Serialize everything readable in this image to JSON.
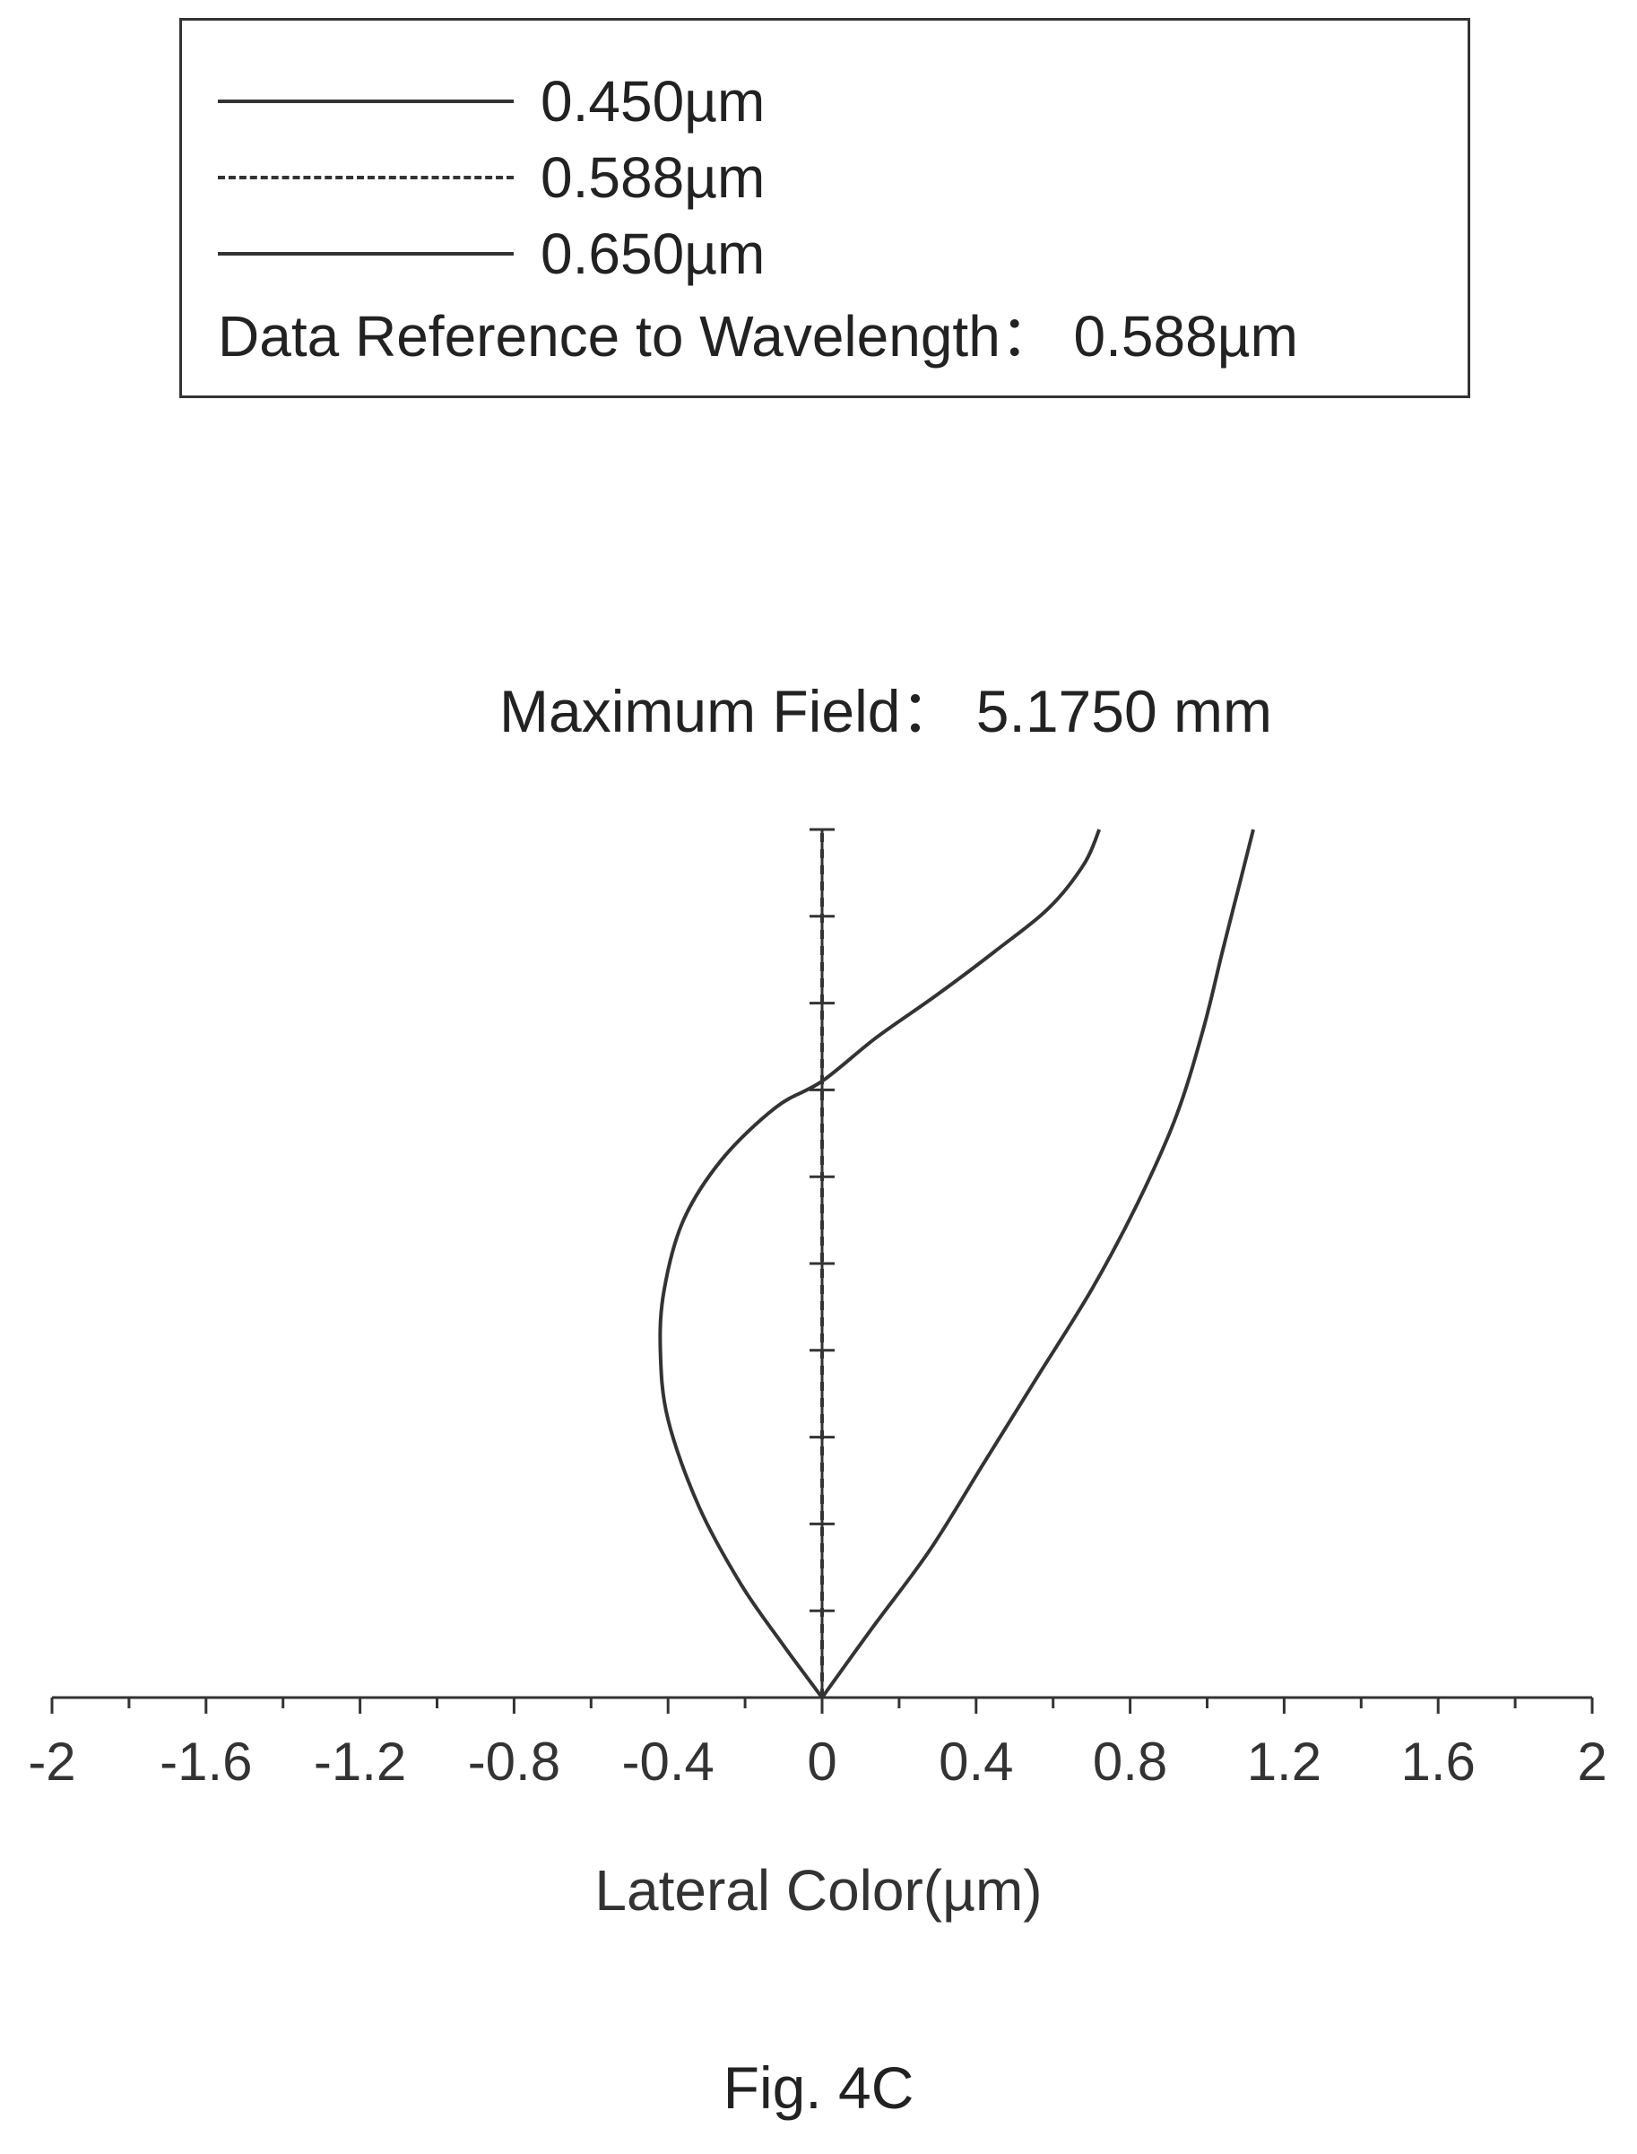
{
  "legend": {
    "items": [
      {
        "label": "0.450µm",
        "style": "solid"
      },
      {
        "label": "0.588µm",
        "style": "dashed"
      },
      {
        "label": "0.650µm",
        "style": "solid"
      }
    ],
    "reference": "Data Reference to Wavelength：  0.588µm"
  },
  "caption": "Fig. 4C",
  "chart_data": {
    "type": "line",
    "title": "Maximum Field：  5.1750 mm",
    "xlabel": "Lateral Color(µm)",
    "ylabel": "",
    "xlim": [
      -2,
      2
    ],
    "ylim": [
      0,
      1
    ],
    "x_ticks": [
      -2,
      -1.6,
      -1.2,
      -0.8,
      -0.4,
      0,
      0.4,
      0.8,
      1.2,
      1.6,
      2
    ],
    "x_tick_labels": [
      "-2",
      "-1.6",
      "-1.2",
      "-0.8",
      "-0.4",
      "0",
      "0.4",
      "0.8",
      "1.2",
      "1.6",
      "2"
    ],
    "x_minor_step": 0.2,
    "y_ticks": [
      0,
      0.1,
      0.2,
      0.3,
      0.4,
      0.5,
      0.6,
      0.7,
      0.8,
      0.9,
      1.0
    ],
    "grid": false,
    "series": [
      {
        "name": "0.450µm",
        "style": "solid",
        "color": "#333333",
        "x": [
          0,
          -0.1,
          -0.21,
          -0.32,
          -0.4,
          -0.42,
          -0.41,
          -0.36,
          -0.26,
          -0.12,
          0,
          0.14,
          0.3,
          0.45,
          0.59,
          0.68,
          0.72
        ],
        "y": [
          0,
          0.06,
          0.13,
          0.22,
          0.32,
          0.4,
          0.47,
          0.55,
          0.62,
          0.68,
          0.71,
          0.76,
          0.81,
          0.86,
          0.91,
          0.96,
          1.0
        ]
      },
      {
        "name": "0.588µm",
        "style": "dashed",
        "color": "#333333",
        "x": [
          0,
          0,
          0,
          0,
          0,
          0,
          0,
          0,
          0,
          0,
          0
        ],
        "y": [
          0,
          0.1,
          0.2,
          0.3,
          0.4,
          0.5,
          0.6,
          0.7,
          0.8,
          0.9,
          1.0
        ]
      },
      {
        "name": "0.650µm",
        "style": "solid",
        "color": "#333333",
        "x": [
          0,
          0.13,
          0.28,
          0.42,
          0.56,
          0.7,
          0.82,
          0.92,
          0.99,
          1.04,
          1.08,
          1.12
        ],
        "y": [
          0,
          0.08,
          0.17,
          0.27,
          0.37,
          0.47,
          0.57,
          0.67,
          0.77,
          0.86,
          0.93,
          1.0
        ]
      }
    ]
  }
}
